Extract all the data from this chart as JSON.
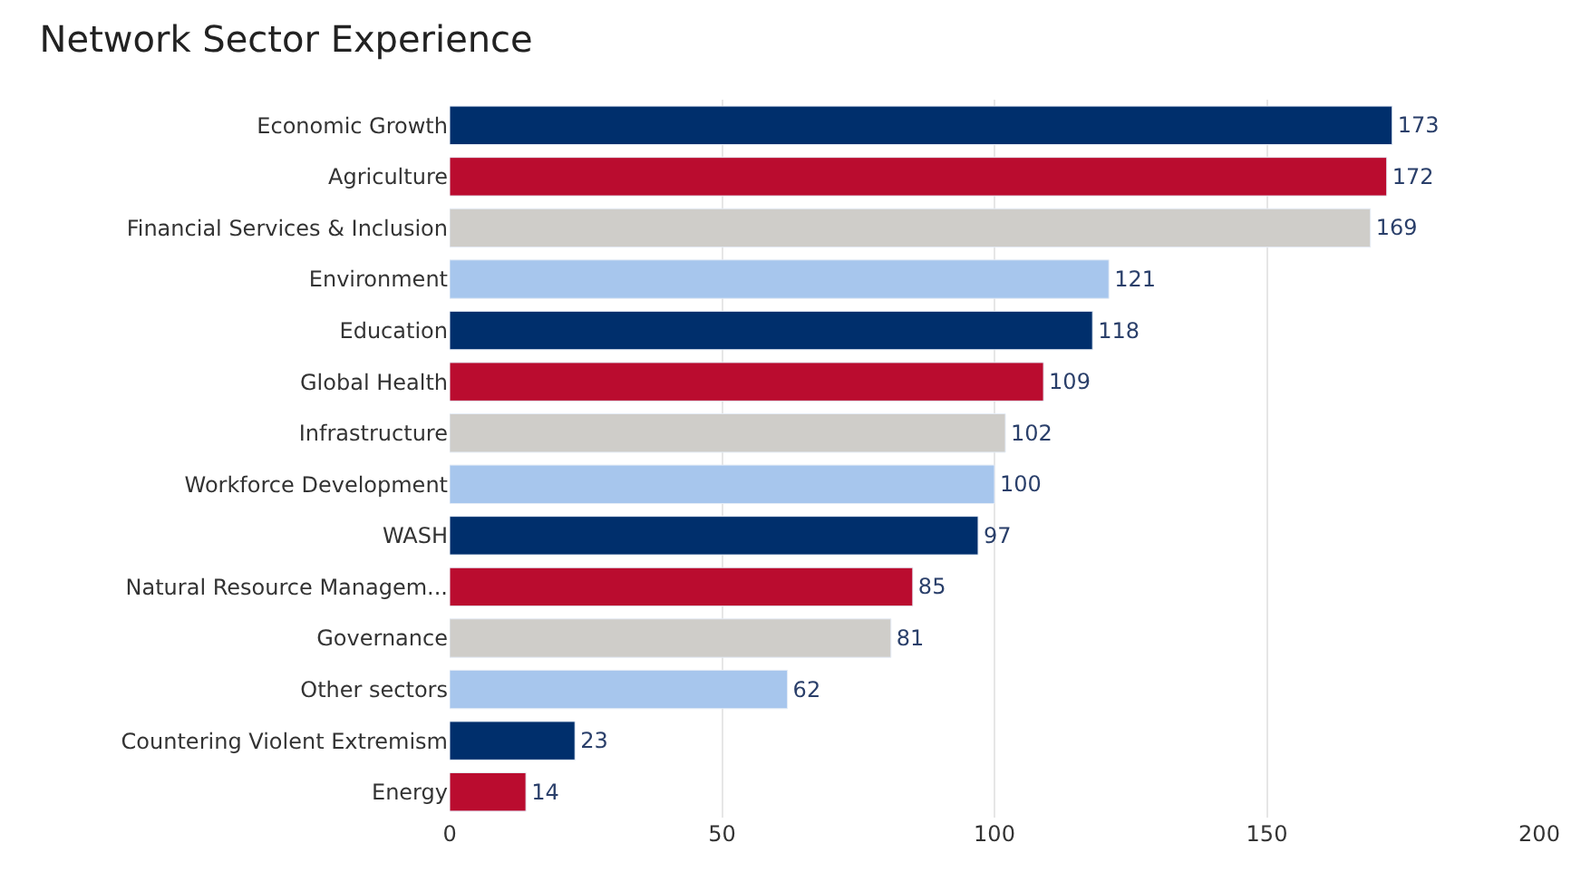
{
  "chart_data": {
    "type": "bar",
    "orientation": "horizontal",
    "title": "Network Sector Experience",
    "categories": [
      "Economic Growth",
      "Agriculture",
      "Financial Services & Inclusion",
      "Environment",
      "Education",
      "Global Health",
      "Infrastructure",
      "Workforce Development",
      "WASH",
      "Natural Resource Managem...",
      "Governance",
      "Other sectors",
      "Countering Violent Extremism",
      "Energy"
    ],
    "values": [
      173,
      172,
      169,
      121,
      118,
      109,
      102,
      100,
      97,
      85,
      81,
      62,
      23,
      14
    ],
    "colors": [
      "#002f6c",
      "#ba0c2f",
      "#cfcdc9",
      "#a7c6ed",
      "#002f6c",
      "#ba0c2f",
      "#cfcdc9",
      "#a7c6ed",
      "#002f6c",
      "#ba0c2f",
      "#cfcdc9",
      "#a7c6ed",
      "#002f6c",
      "#ba0c2f"
    ],
    "xlim": [
      0,
      200
    ],
    "xticks": [
      0,
      50,
      100,
      150,
      200
    ],
    "grid": "x",
    "data_labels": true,
    "legend": false
  }
}
